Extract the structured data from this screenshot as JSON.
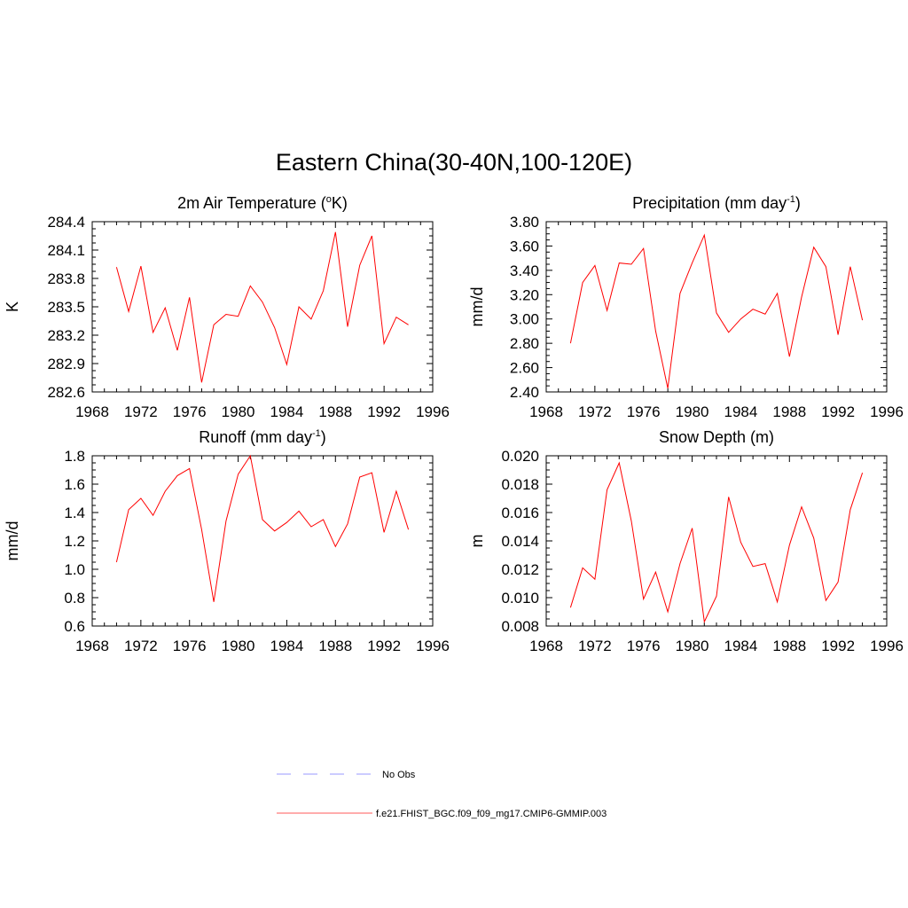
{
  "title": "Eastern China(30-40N,100-120E)",
  "chart_data": [
    {
      "type": "line",
      "title_main": "2m Air Temperature (",
      "title_sup": "o",
      "title_rest": "K)",
      "ylabel": "K",
      "xlim": [
        1968,
        1996
      ],
      "ylim": [
        282.6,
        284.4
      ],
      "xticks": [
        "1968",
        "1972",
        "1976",
        "1980",
        "1984",
        "1988",
        "1992",
        "1996"
      ],
      "yticks": [
        "282.6",
        "282.9",
        "283.2",
        "283.5",
        "283.8",
        "284.1",
        "284.4"
      ],
      "series": [
        {
          "name": "f.e21.FHIST_BGC.f09_f09_mg17.CMIP6-GMMIP.003",
          "color": "#ff0000",
          "x": [
            1970,
            1971,
            1972,
            1973,
            1974,
            1975,
            1976,
            1977,
            1978,
            1979,
            1980,
            1981,
            1982,
            1983,
            1984,
            1985,
            1986,
            1987,
            1988,
            1989,
            1990,
            1991,
            1992,
            1993,
            1994
          ],
          "values": [
            283.92,
            283.45,
            283.93,
            283.23,
            283.49,
            283.04,
            283.6,
            282.7,
            283.31,
            283.42,
            283.4,
            283.72,
            283.55,
            283.28,
            282.89,
            283.5,
            283.37,
            283.67,
            284.29,
            283.29,
            283.94,
            284.25,
            283.11,
            283.39,
            283.31
          ]
        }
      ]
    },
    {
      "type": "line",
      "title_main": "Precipitation (mm day",
      "title_sup": "-1",
      "title_rest": ")",
      "ylabel": "mm/d",
      "xlim": [
        1968,
        1996
      ],
      "ylim": [
        2.4,
        3.8
      ],
      "xticks": [
        "1968",
        "1972",
        "1976",
        "1980",
        "1984",
        "1988",
        "1992",
        "1996"
      ],
      "yticks": [
        "2.40",
        "2.60",
        "2.80",
        "3.00",
        "3.20",
        "3.40",
        "3.60",
        "3.80"
      ],
      "series": [
        {
          "name": "f.e21.FHIST_BGC.f09_f09_mg17.CMIP6-GMMIP.003",
          "color": "#ff0000",
          "x": [
            1970,
            1971,
            1972,
            1973,
            1974,
            1975,
            1976,
            1977,
            1978,
            1979,
            1980,
            1981,
            1982,
            1983,
            1984,
            1985,
            1986,
            1987,
            1988,
            1989,
            1990,
            1991,
            1992,
            1993,
            1994
          ],
          "values": [
            2.8,
            3.3,
            3.44,
            3.07,
            3.46,
            3.45,
            3.58,
            2.9,
            2.43,
            3.21,
            3.46,
            3.69,
            3.05,
            2.89,
            3.0,
            3.08,
            3.04,
            3.21,
            2.69,
            3.18,
            3.59,
            3.43,
            2.87,
            3.43,
            2.99
          ]
        }
      ]
    },
    {
      "type": "line",
      "title_main": "Runoff (mm day",
      "title_sup": "-1",
      "title_rest": ")",
      "ylabel": "mm/d",
      "xlim": [
        1968,
        1996
      ],
      "ylim": [
        0.6,
        1.8
      ],
      "xticks": [
        "1968",
        "1972",
        "1976",
        "1980",
        "1984",
        "1988",
        "1992",
        "1996"
      ],
      "yticks": [
        "0.6",
        "0.8",
        "1.0",
        "1.2",
        "1.4",
        "1.6",
        "1.8"
      ],
      "series": [
        {
          "name": "f.e21.FHIST_BGC.f09_f09_mg17.CMIP6-GMMIP.003",
          "color": "#ff0000",
          "x": [
            1970,
            1971,
            1972,
            1973,
            1974,
            1975,
            1976,
            1977,
            1978,
            1979,
            1980,
            1981,
            1982,
            1983,
            1984,
            1985,
            1986,
            1987,
            1988,
            1989,
            1990,
            1991,
            1992,
            1993,
            1994
          ],
          "values": [
            1.05,
            1.42,
            1.5,
            1.38,
            1.55,
            1.66,
            1.71,
            1.28,
            0.77,
            1.34,
            1.67,
            1.8,
            1.35,
            1.27,
            1.33,
            1.41,
            1.3,
            1.35,
            1.16,
            1.32,
            1.65,
            1.68,
            1.26,
            1.55,
            1.28
          ]
        }
      ]
    },
    {
      "type": "line",
      "title_main": "Snow Depth (m)",
      "title_sup": "",
      "title_rest": "",
      "ylabel": "m",
      "xlim": [
        1968,
        1996
      ],
      "ylim": [
        0.008,
        0.02
      ],
      "xticks": [
        "1968",
        "1972",
        "1976",
        "1980",
        "1984",
        "1988",
        "1992",
        "1996"
      ],
      "yticks": [
        "0.008",
        "0.010",
        "0.012",
        "0.014",
        "0.016",
        "0.018",
        "0.020"
      ],
      "series": [
        {
          "name": "f.e21.FHIST_BGC.f09_f09_mg17.CMIP6-GMMIP.003",
          "color": "#ff0000",
          "x": [
            1970,
            1971,
            1972,
            1973,
            1974,
            1975,
            1976,
            1977,
            1978,
            1979,
            1980,
            1981,
            1982,
            1983,
            1984,
            1985,
            1986,
            1987,
            1988,
            1989,
            1990,
            1991,
            1992,
            1993,
            1994
          ],
          "values": [
            0.0093,
            0.0121,
            0.0113,
            0.0176,
            0.0195,
            0.0154,
            0.0099,
            0.0118,
            0.009,
            0.0124,
            0.0149,
            0.0083,
            0.0101,
            0.0171,
            0.0139,
            0.0122,
            0.0124,
            0.0097,
            0.0137,
            0.0164,
            0.0142,
            0.0098,
            0.0111,
            0.0162,
            0.0188
          ]
        }
      ]
    }
  ],
  "legend": [
    {
      "label": "No Obs",
      "color": "#9999ff",
      "style": "dashed"
    },
    {
      "label": "f.e21.FHIST_BGC.f09_f09_mg17.CMIP6-GMMIP.003",
      "color": "#ff5a5a",
      "style": "solid"
    }
  ]
}
